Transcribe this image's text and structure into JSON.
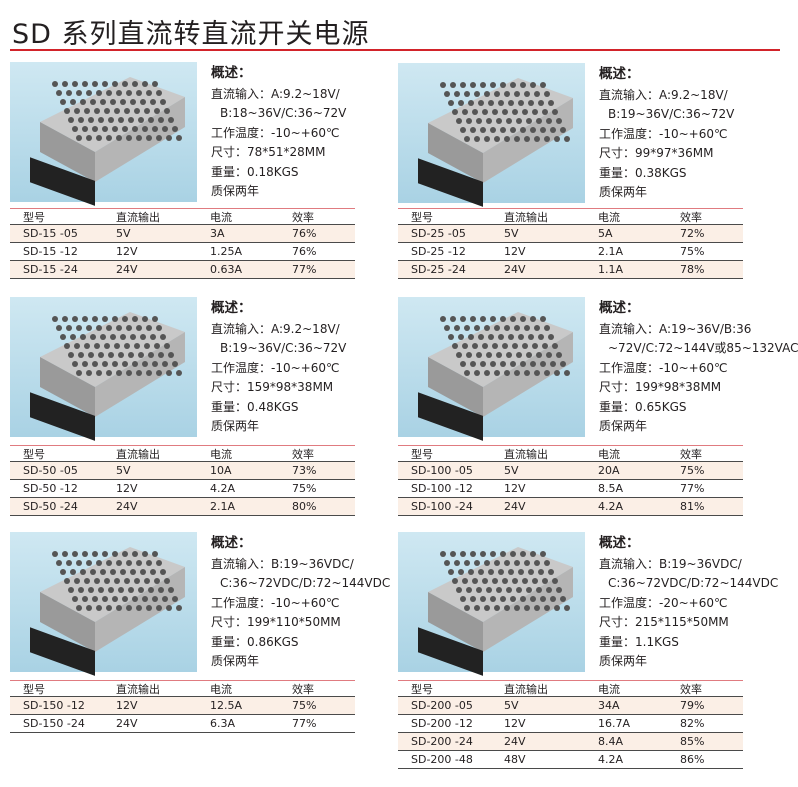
{
  "title": "SD 系列直流转直流开关电源",
  "headers": [
    "型号",
    "直流输出",
    "电流",
    "效率"
  ],
  "products": [
    {
      "specs": [
        "概述：",
        "直流输入：A:9.2~18V/",
        "B:18~36V/C:36~72V",
        "工作温度：-10~+60℃",
        "尺寸：78*51*28MM",
        "重量：0.18KGS",
        "质保两年"
      ],
      "rows": [
        [
          "SD-15 -05",
          "5V",
          "3A",
          "76%"
        ],
        [
          "SD-15 -12",
          "12V",
          "1.25A",
          "76%"
        ],
        [
          "SD-15 -24",
          "24V",
          "0.63A",
          "77%"
        ]
      ]
    },
    {
      "specs": [
        "概述：",
        "直流输入：A:9.2~18V/",
        "B:19~36V/C:36~72V",
        "工作温度：-10~+60℃",
        "尺寸：99*97*36MM",
        "重量：0.38KGS",
        "质保两年"
      ],
      "rows": [
        [
          "SD-25 -05",
          "5V",
          "5A",
          "72%"
        ],
        [
          "SD-25 -12",
          "12V",
          "2.1A",
          "75%"
        ],
        [
          "SD-25 -24",
          "24V",
          "1.1A",
          "78%"
        ]
      ]
    },
    {
      "specs": [
        "概述：",
        "直流输入：A:9.2~18V/",
        "B:19~36V/C:36~72V",
        "工作温度：-10~+60℃",
        "尺寸：159*98*38MM",
        "重量：0.48KGS",
        "质保两年"
      ],
      "rows": [
        [
          "SD-50 -05",
          "5V",
          "10A",
          "73%"
        ],
        [
          "SD-50 -12",
          "12V",
          "4.2A",
          "75%"
        ],
        [
          "SD-50 -24",
          "24V",
          "2.1A",
          "80%"
        ]
      ]
    },
    {
      "specs": [
        "概述：",
        "直流输入：A:19~36V/B:36",
        "~72V/C:72~144V或85~132VAC",
        "工作温度：-10~+60℃",
        "尺寸：199*98*38MM",
        "重量：0.65KGS",
        "质保两年"
      ],
      "rows": [
        [
          "SD-100 -05",
          "5V",
          "20A",
          "75%"
        ],
        [
          "SD-100 -12",
          "12V",
          "8.5A",
          "77%"
        ],
        [
          "SD-100 -24",
          "24V",
          "4.2A",
          "81%"
        ]
      ]
    },
    {
      "specs": [
        "概述：",
        "直流输入：B:19~36VDC/",
        "C:36~72VDC/D:72~144VDC",
        "工作温度：-10~+60℃",
        "尺寸：199*110*50MM",
        "重量：0.86KGS",
        "质保两年"
      ],
      "rows": [
        [
          "SD-150 -12",
          "12V",
          "12.5A",
          "75%"
        ],
        [
          "SD-150 -24",
          "24V",
          "6.3A",
          "77%"
        ]
      ]
    },
    {
      "specs": [
        "概述：",
        "直流输入：B:19~36VDC/",
        "C:36~72VDC/D:72~144VDC",
        "工作温度：-20~+60℃",
        "尺寸：215*115*50MM",
        "重量：1.1KGS",
        "质保两年"
      ],
      "rows": [
        [
          "SD-200 -05",
          "5V",
          "34A",
          "79%"
        ],
        [
          "SD-200 -12",
          "12V",
          "16.7A",
          "82%"
        ],
        [
          "SD-200 -24",
          "24V",
          "8.4A",
          "85%"
        ],
        [
          "SD-200 -48",
          "48V",
          "4.2A",
          "86%"
        ]
      ]
    }
  ]
}
